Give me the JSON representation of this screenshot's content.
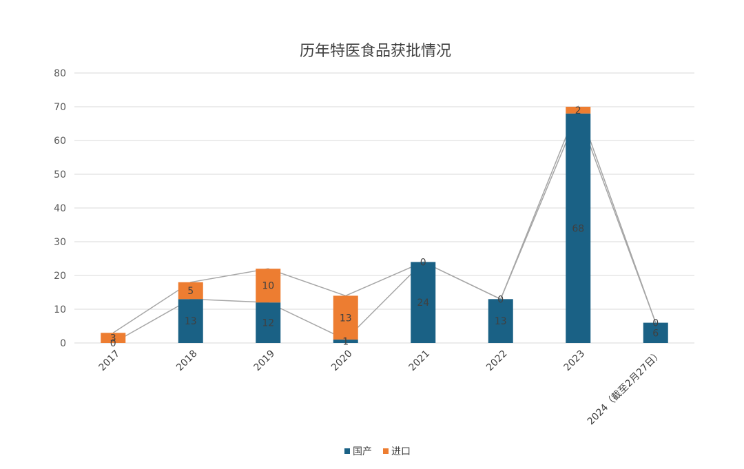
{
  "chart_data": {
    "type": "bar",
    "stacked": true,
    "title": "历年特医食品获批情况",
    "categories": [
      "2017",
      "2018",
      "2019",
      "2020",
      "2021",
      "2022",
      "2023",
      "2024（截至2月27日）"
    ],
    "series": [
      {
        "name": "国产",
        "values": [
          0,
          13,
          12,
          1,
          24,
          13,
          68,
          6
        ],
        "color": "#1a6185"
      },
      {
        "name": "进口",
        "values": [
          3,
          5,
          10,
          13,
          0,
          0,
          2,
          0
        ],
        "color": "#ed7d31"
      }
    ],
    "ylim": [
      0,
      80
    ],
    "yticks": [
      0,
      10,
      20,
      30,
      40,
      50,
      60,
      70,
      80
    ],
    "grid": true,
    "legend_position": "bottom",
    "series_lines": true
  }
}
